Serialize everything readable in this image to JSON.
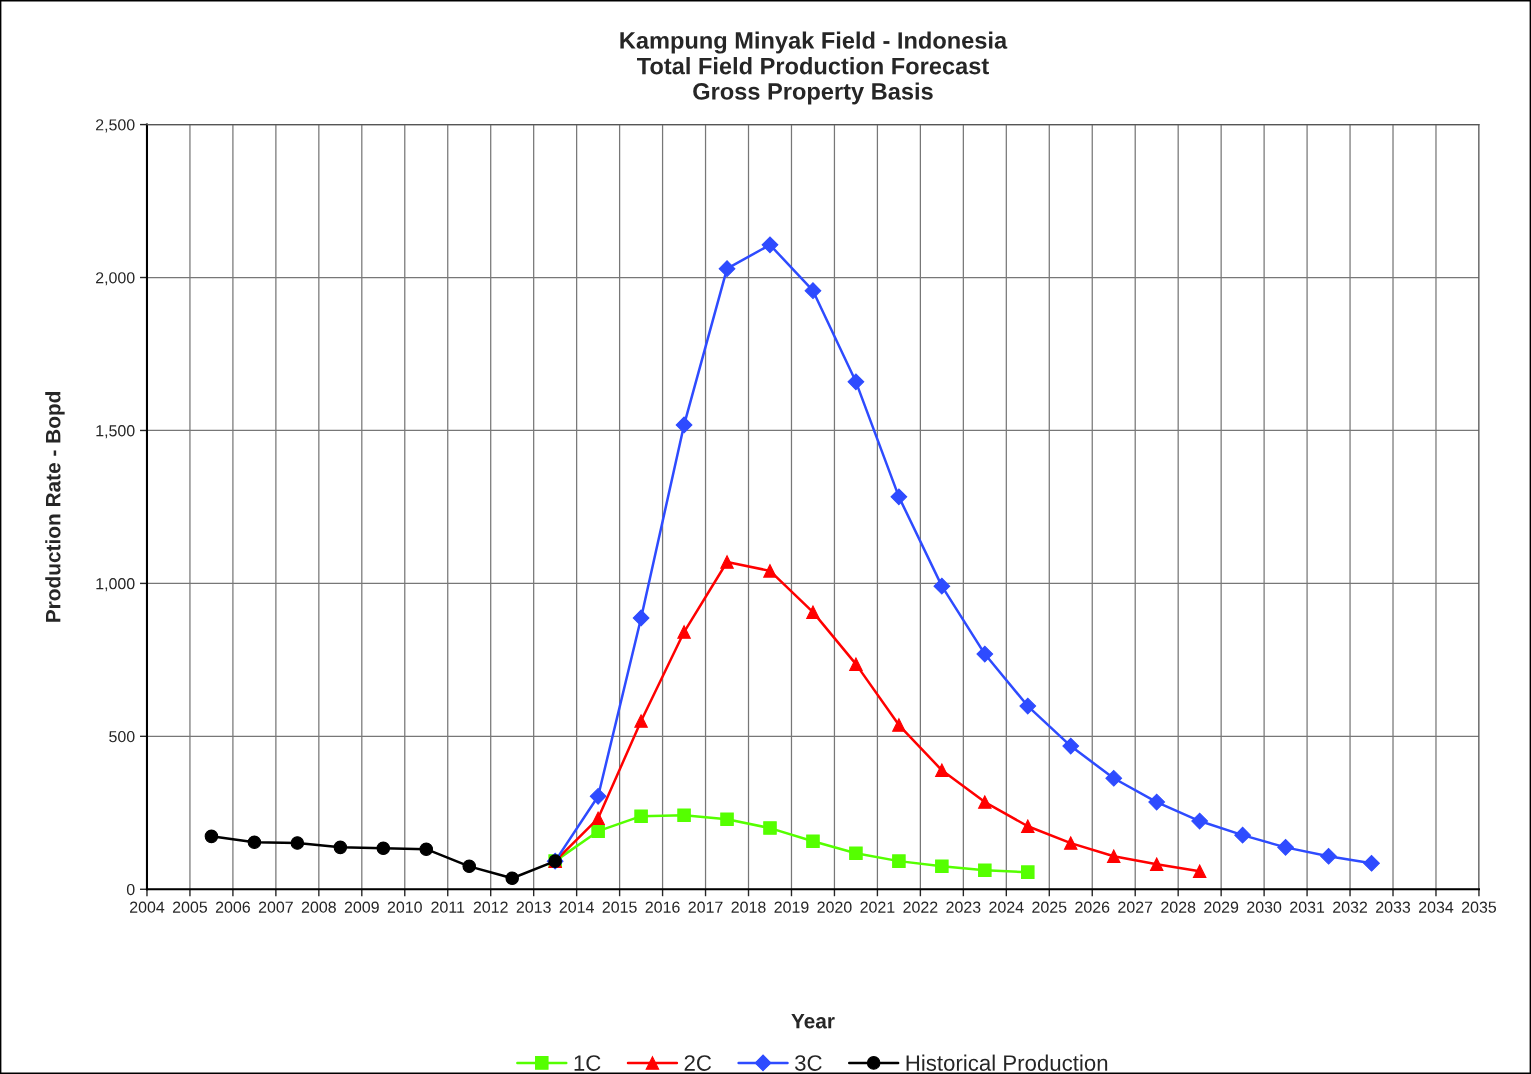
{
  "chart_data": {
    "type": "line",
    "title": "Kampung Minyak Field - Indonesia\nTotal Field Production Forecast\nGross Property Basis",
    "xlabel": "Year",
    "ylabel": "Production Rate - Bopd",
    "xlim": [
      2004,
      2035
    ],
    "xticks": [
      2004,
      2005,
      2006,
      2007,
      2008,
      2009,
      2010,
      2011,
      2012,
      2013,
      2014,
      2015,
      2016,
      2017,
      2018,
      2019,
      2020,
      2021,
      2022,
      2023,
      2024,
      2025,
      2026,
      2027,
      2028,
      2029,
      2030,
      2031,
      2032,
      2033,
      2034,
      2035
    ],
    "ylim": [
      0,
      2500
    ],
    "yticks": [
      {
        "value": 0,
        "label": "0"
      },
      {
        "value": 500,
        "label": "500"
      },
      {
        "value": 1000,
        "label": "1,000"
      },
      {
        "value": 1500,
        "label": "1,500"
      },
      {
        "value": 2000,
        "label": "2,000"
      },
      {
        "value": 2500,
        "label": "2,500"
      }
    ],
    "grid": true,
    "legend": "bottom",
    "series": [
      {
        "name": "1C",
        "color": "#55ff00",
        "marker": "square",
        "x": [
          2013.5,
          2014.5,
          2015.5,
          2016.5,
          2017.5,
          2018.5,
          2019.5,
          2020.5,
          2021.5,
          2022.5,
          2023.5,
          2024.5
        ],
        "values": [
          92,
          190,
          239,
          242,
          229,
          200,
          157,
          118,
          92,
          75,
          62,
          56
        ]
      },
      {
        "name": "2C",
        "color": "#ff0000",
        "marker": "triangle",
        "x": [
          2013.5,
          2014.5,
          2015.5,
          2016.5,
          2017.5,
          2018.5,
          2019.5,
          2020.5,
          2021.5,
          2022.5,
          2023.5,
          2024.5,
          2025.5,
          2026.5,
          2027.5,
          2028.5
        ],
        "values": [
          92,
          232,
          550,
          841,
          1070,
          1041,
          906,
          736,
          537,
          389,
          285,
          206,
          151,
          108,
          82,
          59
        ]
      },
      {
        "name": "3C",
        "color": "#2e4bff",
        "marker": "diamond",
        "x": [
          2013.5,
          2014.5,
          2015.5,
          2016.5,
          2017.5,
          2018.5,
          2019.5,
          2020.5,
          2021.5,
          2022.5,
          2023.5,
          2024.5,
          2025.5,
          2026.5,
          2027.5,
          2028.5,
          2029.5,
          2030.5,
          2031.5,
          2032.5
        ],
        "values": [
          92,
          304,
          887,
          1518,
          2029,
          2107,
          1957,
          1659,
          1283,
          991,
          769,
          599,
          468,
          363,
          285,
          223,
          177,
          137,
          108,
          85
        ]
      },
      {
        "name": "Historical Production",
        "color": "#000000",
        "marker": "circle",
        "x": [
          2005.5,
          2006.5,
          2007.5,
          2008.5,
          2009.5,
          2010.5,
          2011.5,
          2012.5,
          2013.5
        ],
        "values": [
          173,
          154,
          151,
          137,
          134,
          131,
          75,
          36,
          92
        ]
      }
    ]
  }
}
